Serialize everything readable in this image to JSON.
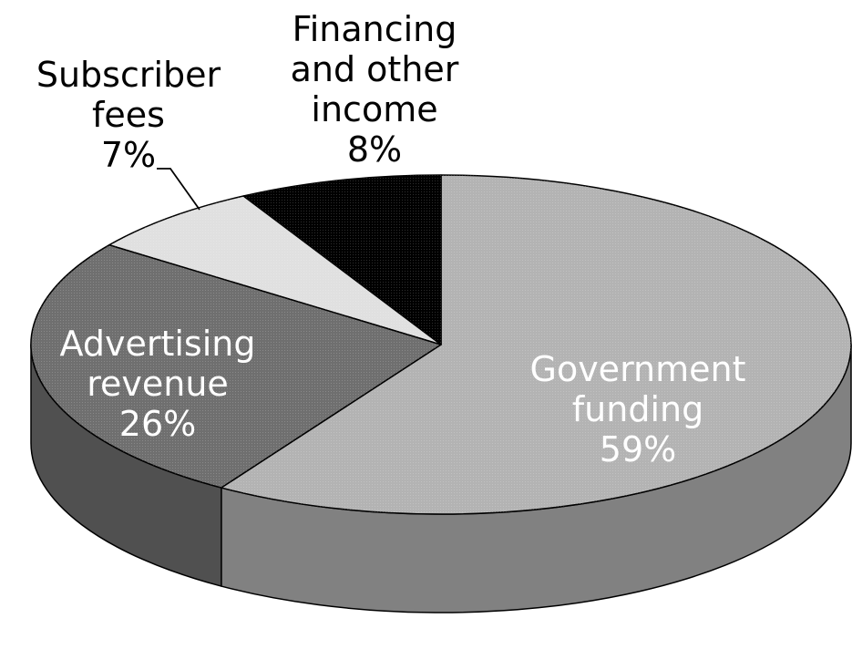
{
  "chart_data": {
    "type": "pie",
    "style": "3d",
    "categories": [
      "Government funding",
      "Advertising revenue",
      "Subscriber fees",
      "Financing and other income"
    ],
    "values": [
      59,
      26,
      7,
      8
    ],
    "colors": [
      "#b3b3b3",
      "#6f6f6f",
      "#e0e0e0",
      "#000000"
    ],
    "labels": [
      {
        "lines": [
          "Government",
          "funding",
          "59%"
        ],
        "color": "#ffffff"
      },
      {
        "lines": [
          "Advertising",
          "revenue",
          "26%"
        ],
        "color": "#ffffff"
      },
      {
        "lines": [
          "Subscriber",
          "fees",
          "7%"
        ],
        "color": "#000000"
      },
      {
        "lines": [
          "Financing",
          "and other",
          "income",
          "8%"
        ],
        "color": "#000000"
      }
    ],
    "title": "",
    "legend": "none"
  }
}
